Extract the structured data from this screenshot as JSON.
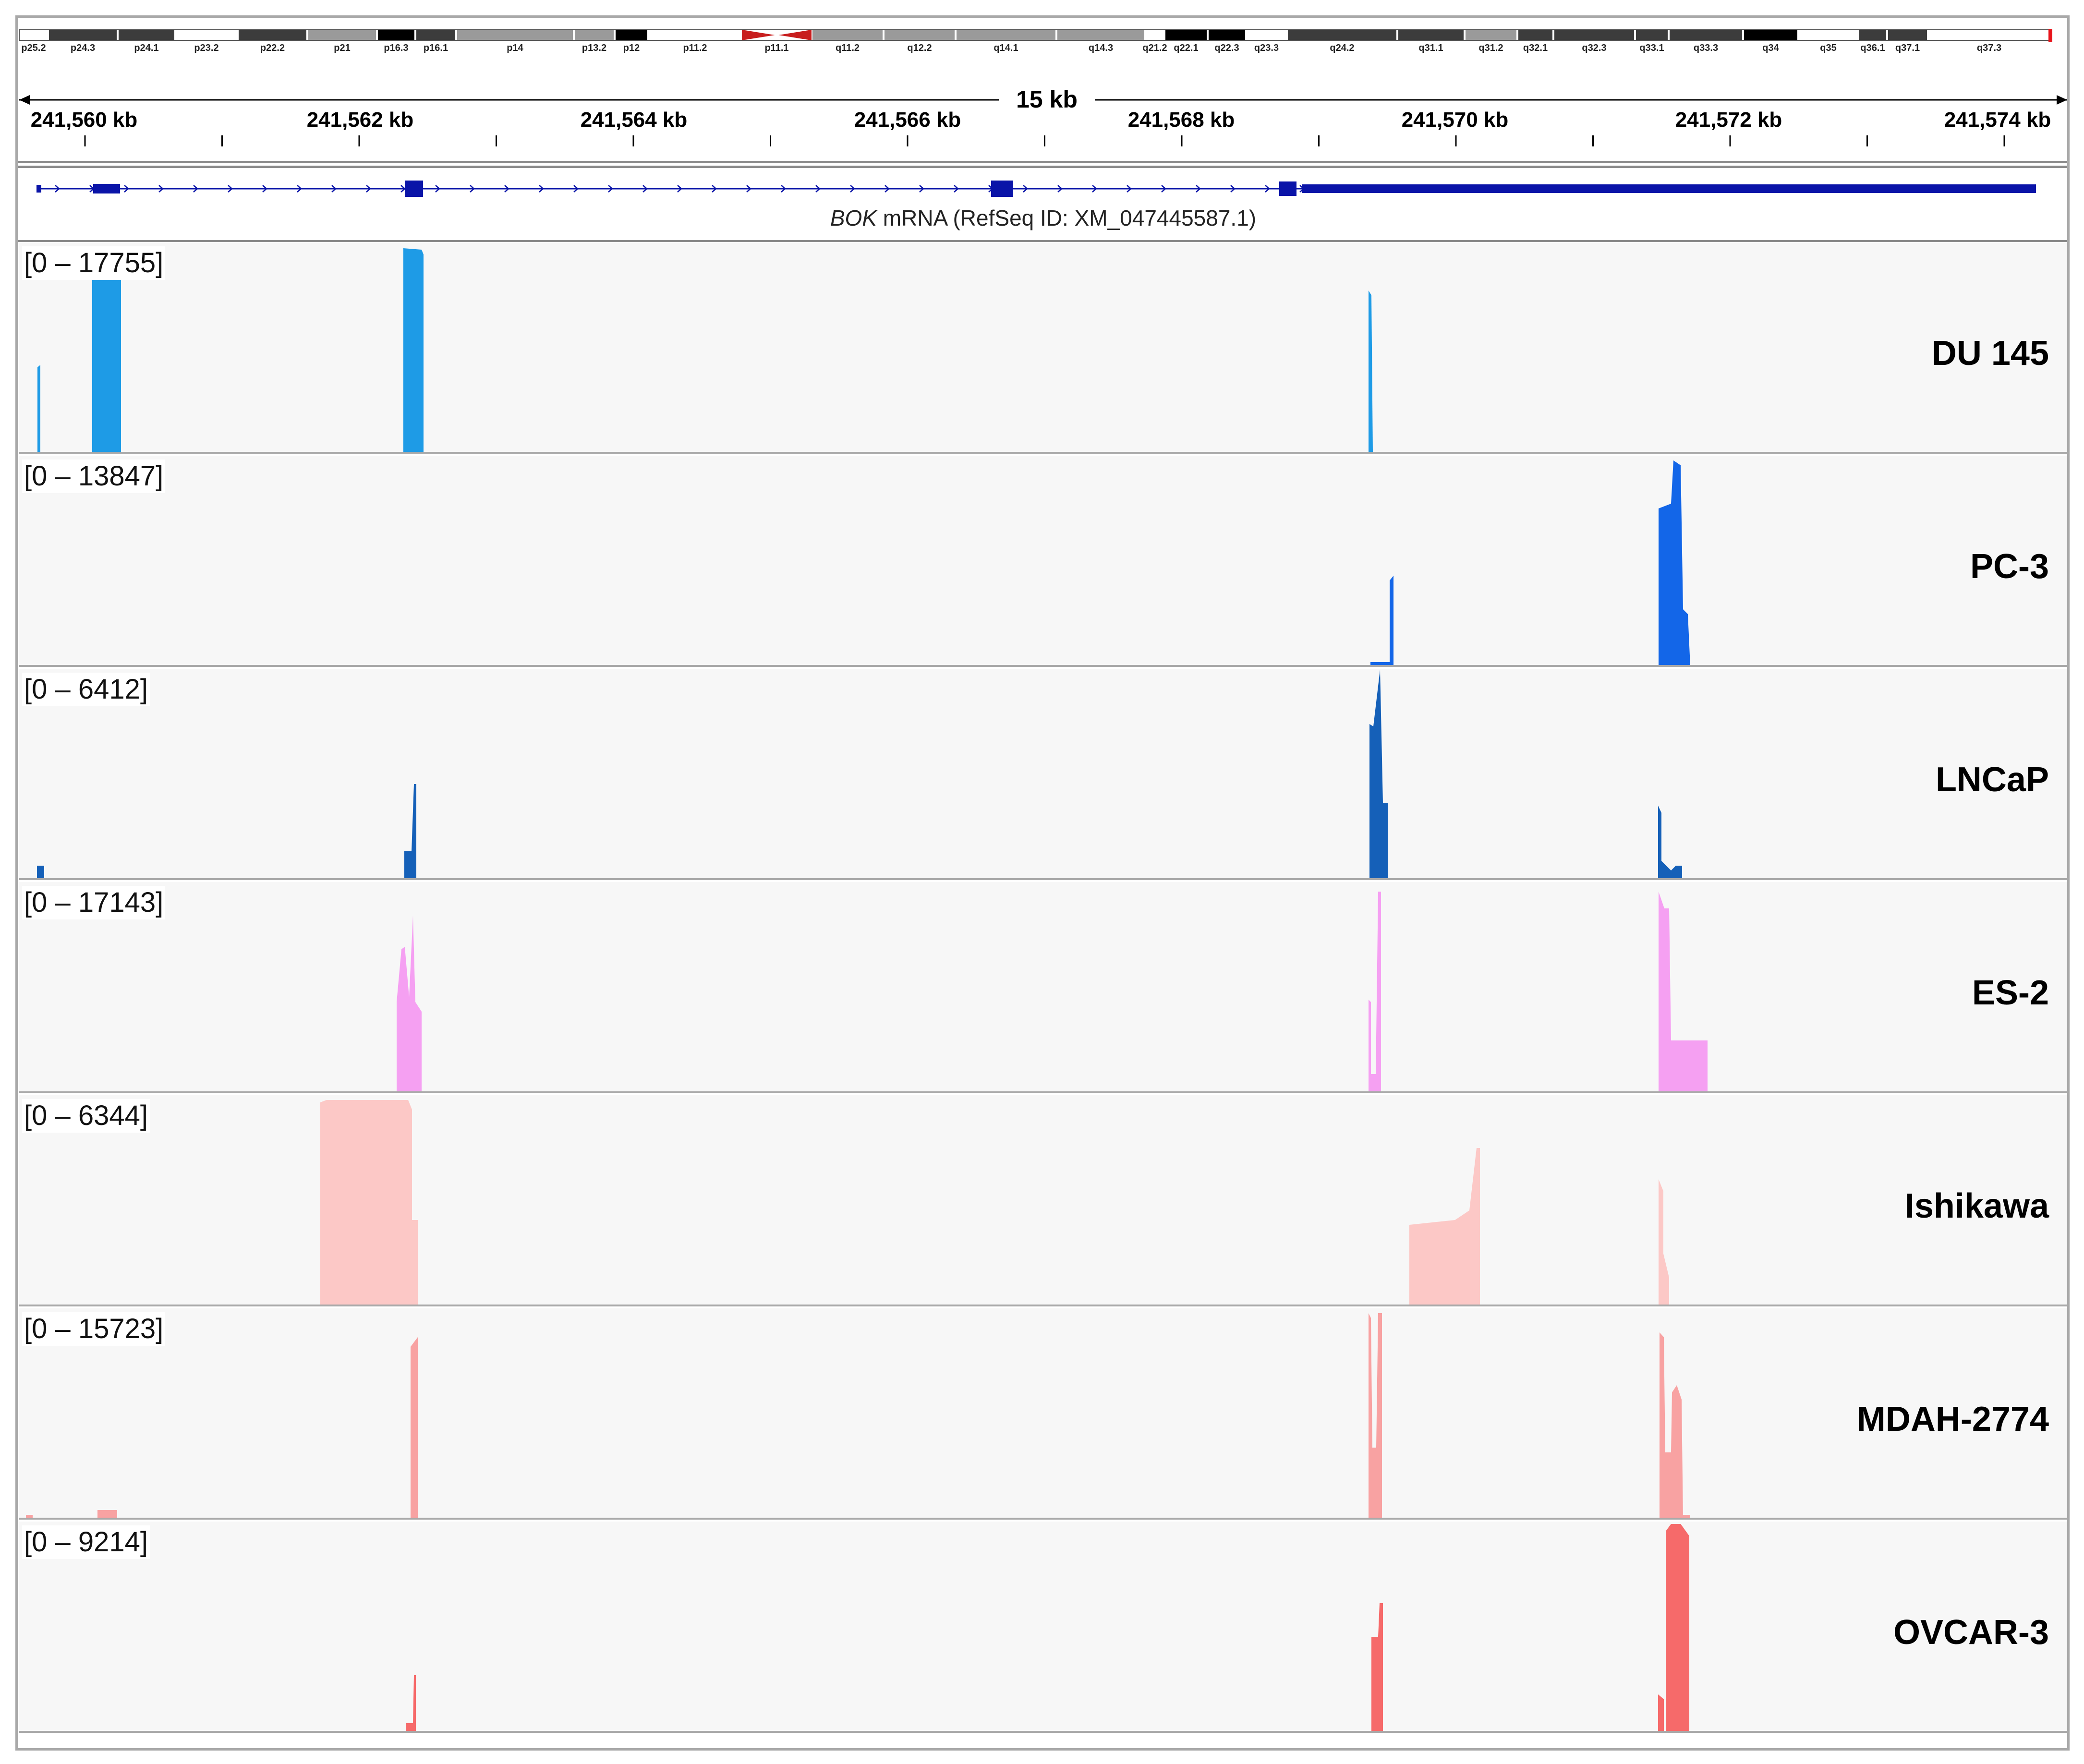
{
  "ideogram": {
    "bands": [
      {
        "name": "p25.2",
        "stain": "light"
      },
      {
        "name": "p24.3",
        "stain": "dark"
      },
      {
        "name": "p24.1",
        "stain": "dark"
      },
      {
        "name": "p23.2",
        "stain": "light"
      },
      {
        "name": "p22.2",
        "stain": "dark"
      },
      {
        "name": "p21",
        "stain": "mid"
      },
      {
        "name": "p16.3",
        "stain": "black"
      },
      {
        "name": "p16.1",
        "stain": "dark"
      },
      {
        "name": "p14",
        "stain": "mid"
      },
      {
        "name": "p13.2",
        "stain": "mid"
      },
      {
        "name": "p12",
        "stain": "black"
      },
      {
        "name": "p11.2",
        "stain": "light"
      },
      {
        "name": "p11.1",
        "stain": "centro"
      },
      {
        "name": "q11.2",
        "stain": "mid"
      },
      {
        "name": "q12.2",
        "stain": "mid"
      },
      {
        "name": "q14.1",
        "stain": "mid"
      },
      {
        "name": "q14.3",
        "stain": "mid"
      },
      {
        "name": "q21.2",
        "stain": "light"
      },
      {
        "name": "q22.1",
        "stain": "black"
      },
      {
        "name": "q22.3",
        "stain": "black"
      },
      {
        "name": "q23.3",
        "stain": "light"
      },
      {
        "name": "q24.2",
        "stain": "dark"
      },
      {
        "name": "q31.1",
        "stain": "dark"
      },
      {
        "name": "q31.2",
        "stain": "mid"
      },
      {
        "name": "q32.1",
        "stain": "dark"
      },
      {
        "name": "q32.3",
        "stain": "dark"
      },
      {
        "name": "q33.1",
        "stain": "dark"
      },
      {
        "name": "q33.3",
        "stain": "dark"
      },
      {
        "name": "q34",
        "stain": "black"
      },
      {
        "name": "q35",
        "stain": "light"
      },
      {
        "name": "q36.1",
        "stain": "dark"
      },
      {
        "name": "q37.1",
        "stain": "dark"
      },
      {
        "name": "q37.3",
        "stain": "light"
      }
    ],
    "highlight_color": "#e8141b",
    "centromere_color": "#c81e1e"
  },
  "ruler": {
    "span_label": "15 kb",
    "ticks": [
      "241,560 kb",
      "241,562 kb",
      "241,564 kb",
      "241,566 kb",
      "241,568 kb",
      "241,570 kb",
      "241,572 kb",
      "241,574 kb"
    ]
  },
  "gene": {
    "symbol": "BOK",
    "description": " mRNA (RefSeq  ID: XM_047445587.1)",
    "color": "#0a14a8"
  },
  "tracks": [
    {
      "name": "DU 145",
      "range": "[0 – 17755]",
      "color": "#1e9be6"
    },
    {
      "name": "PC-3",
      "range": "[0 – 13847]",
      "color": "#1366e8"
    },
    {
      "name": "LNCaP",
      "range": "[0 – 6412]",
      "color": "#1560b8"
    },
    {
      "name": "ES-2",
      "range": "[0 – 17143]",
      "color": "#f5a0f2"
    },
    {
      "name": "Ishikawa",
      "range": "[0 – 6344]",
      "color": "#fcc8c6"
    },
    {
      "name": "MDAH-2774",
      "range": "[0 – 15723]",
      "color": "#f8a2a2"
    },
    {
      "name": "OVCAR-3",
      "range": "[0 – 9214]",
      "color": "#f66a6a"
    }
  ]
}
